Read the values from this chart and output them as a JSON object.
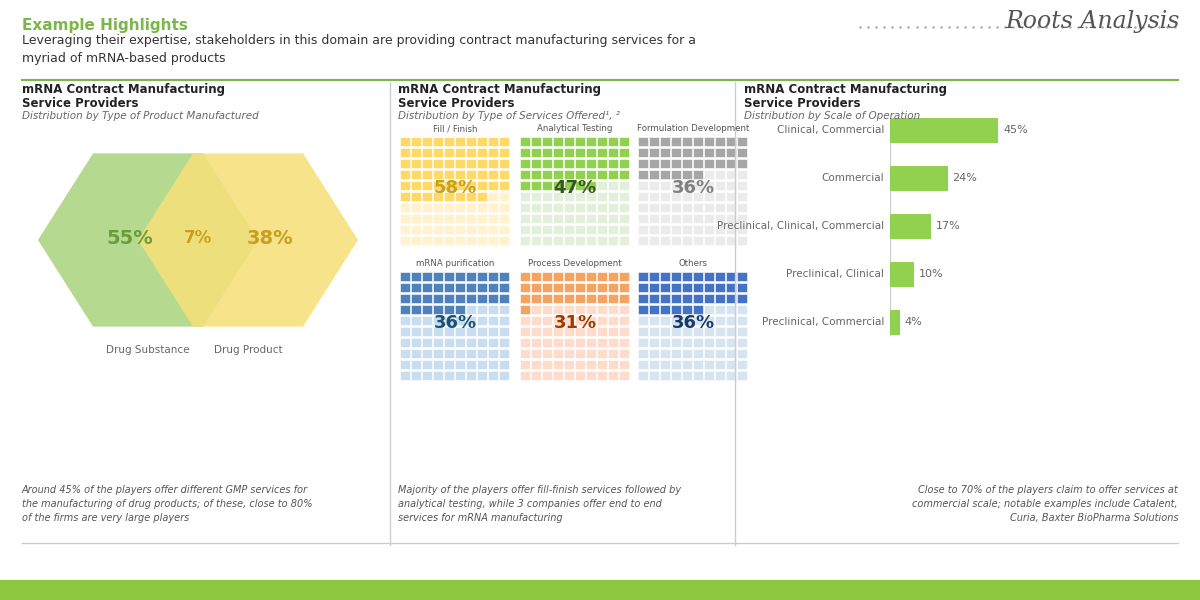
{
  "title_highlight": "Example Highlights",
  "subtitle": "Leveraging their expertise, stakeholders in this domain are providing contract manufacturing services for a\nmyriad of mRNA-based products",
  "bg_color": "#ffffff",
  "highlight_color": "#7ab648",
  "separator_color": "#7ab648",
  "panel1": {
    "title_line1": "mRNA Contract Manufacturing",
    "title_line2": "Service Providers",
    "subtitle": "Distribution by Type of Product Manufactured",
    "ds_pct": "55%",
    "overlap_pct": "7%",
    "dp_pct": "38%",
    "ds_label": "Drug Substance",
    "dp_label": "Drug Product",
    "ds_color": "#b5d98f",
    "dp_color": "#f5e07a",
    "ds_pct_color": "#6a9e3a",
    "overlap_pct_color": "#c8a020",
    "dp_pct_color": "#c8a020",
    "footnote": "Around 45% of the players offer different GMP services for\nthe manufacturing of drug products; of these, close to 80%\nof the firms are very large players"
  },
  "panel2": {
    "title_line1": "mRNA Contract Manufacturing",
    "title_line2": "Service Providers",
    "subtitle": "Distribution by Type of Services Offered¹, ²",
    "services": [
      {
        "name": "Fill / Finish",
        "pct": 58,
        "color_light": "#fff2cc",
        "color_dark": "#ffd966",
        "text_color": "#c8a020",
        "row": 0,
        "col": 0
      },
      {
        "name": "Analytical Testing",
        "pct": 47,
        "color_light": "#e2efda",
        "color_dark": "#92d050",
        "text_color": "#375623",
        "row": 0,
        "col": 1
      },
      {
        "name": "Formulation Development",
        "pct": 36,
        "color_light": "#ebebeb",
        "color_dark": "#a6a6a6",
        "text_color": "#808080",
        "row": 0,
        "col": 2
      },
      {
        "name": "mRNA purification",
        "pct": 36,
        "color_light": "#c9ddf0",
        "color_dark": "#4f81bd",
        "text_color": "#1a5276",
        "row": 1,
        "col": 0
      },
      {
        "name": "Process Development",
        "pct": 31,
        "color_light": "#fddccc",
        "color_dark": "#f4a460",
        "text_color": "#9e3a00",
        "row": 1,
        "col": 1
      },
      {
        "name": "Others",
        "pct": 36,
        "color_light": "#d6e4f0",
        "color_dark": "#4472c4",
        "text_color": "#1a3a6e",
        "row": 1,
        "col": 2
      }
    ],
    "footnote": "Majority of the players offer fill-finish services followed by\nanalytical testing, while 3 companies offer end to end\nservices for mRNA manufacturing"
  },
  "panel3": {
    "title_line1": "mRNA Contract Manufacturing",
    "title_line2": "Service Providers",
    "subtitle": "Distribution by Scale of Operation",
    "categories": [
      "Clinical, Commercial",
      "Commercial",
      "Preclinical, Clinical, Commercial",
      "Preclinical, Clinical",
      "Preclinical, Commercial"
    ],
    "values": [
      45,
      24,
      17,
      10,
      4
    ],
    "bar_color": "#92d050",
    "footnote": "Close to 70% of the players claim to offer services at\ncommercial scale; notable examples include Catalent,\nCuria, Baxter BioPharma Solutions"
  },
  "divider_color": "#cccccc",
  "bottom_bar_color": "#8dc63f",
  "roots_text": "Roots Analysis"
}
